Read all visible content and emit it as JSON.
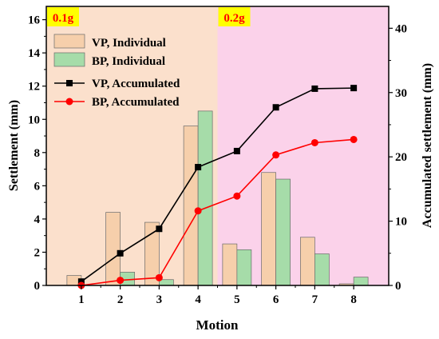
{
  "chart_data": {
    "type": "bar",
    "xlabel": "Motion",
    "ylabel_left": "Settlement (mm)",
    "ylabel_right": "Accumulated settlement (mm)",
    "x": [
      1,
      2,
      3,
      4,
      5,
      6,
      7,
      8
    ],
    "x_ticks": [
      "1",
      "2",
      "3",
      "4",
      "5",
      "6",
      "7",
      "8"
    ],
    "ylim_left": [
      0,
      16.8
    ],
    "ylim_right": [
      0,
      43.4
    ],
    "yticks_left": [
      "0",
      "2",
      "4",
      "6",
      "8",
      "10",
      "12",
      "14",
      "16"
    ],
    "yticks_right": [
      "0",
      "10",
      "20",
      "30",
      "40"
    ],
    "regions": [
      {
        "label": "0.1g",
        "x_start": 0.0,
        "x_end": 4.5,
        "color": "#fbe0cc"
      },
      {
        "label": "0.2g",
        "x_start": 4.5,
        "x_end": 8.9,
        "color": "#fbd2ea"
      }
    ],
    "bar_series": [
      {
        "name": "VP, Individual",
        "color": "#f6cfab",
        "values": [
          0.6,
          4.4,
          3.8,
          9.6,
          2.5,
          6.8,
          2.9,
          0.1
        ]
      },
      {
        "name": "BP, Individual",
        "color": "#a6dca9",
        "values": [
          0.0,
          0.8,
          0.35,
          10.5,
          2.15,
          6.4,
          1.9,
          0.5
        ]
      }
    ],
    "line_series": [
      {
        "name": "VP,  Accumulated",
        "axis": "right",
        "color": "#000000",
        "marker": "square",
        "values": [
          0.6,
          5.0,
          8.8,
          18.4,
          20.9,
          27.7,
          30.6,
          30.7
        ]
      },
      {
        "name": "BP,  Accumulated",
        "axis": "right",
        "color": "#ff0000",
        "marker": "circle",
        "values": [
          0.0,
          0.8,
          1.2,
          11.6,
          13.9,
          20.3,
          22.2,
          22.7
        ]
      }
    ],
    "legend_position": "top-left",
    "grid": false
  }
}
